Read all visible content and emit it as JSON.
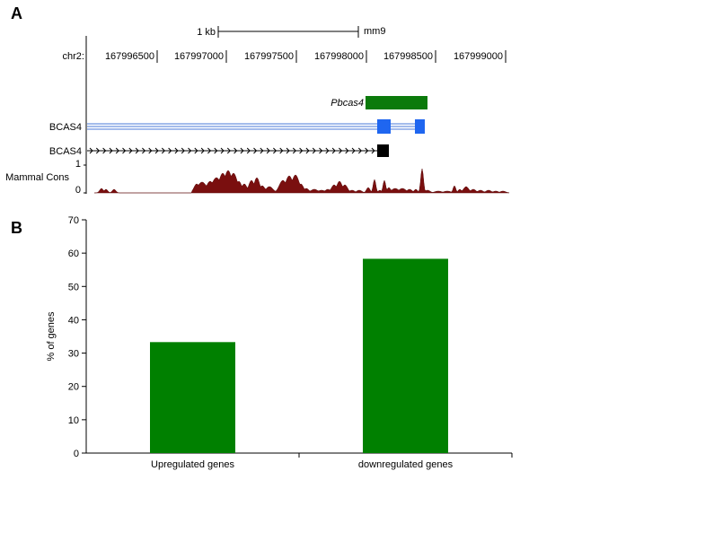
{
  "panels": {
    "a": "A",
    "b": "B"
  },
  "browser": {
    "scale_label": "1 kb",
    "assembly": "mm9",
    "chrom": "chr2:",
    "positions": [
      "167996500",
      "167997000",
      "167997500",
      "167998000",
      "167998500",
      "167999000"
    ],
    "pbcas4_label": "Pbcas4",
    "bcas4_blue_label": "BCAS4",
    "bcas4_black_label": "BCAS4",
    "cons_label": "Mammal Cons",
    "cons_max": "1",
    "cons_min": "0",
    "colors": {
      "pbcas4": "#0b7a0b",
      "bcas4_blue": "#1f66f0",
      "cons": "#7a0f0f",
      "label_green": "#1e7a1e",
      "label_blue": "#2f6fd8"
    }
  },
  "chart_data": {
    "type": "bar",
    "categories": [
      "Upregulated genes",
      "downregulated genes"
    ],
    "values": [
      33.3,
      58.3
    ],
    "ylabel": "% of genes",
    "xlabel": "",
    "ylim": [
      0,
      70
    ],
    "yticks": [
      0,
      10,
      20,
      30,
      40,
      50,
      60,
      70
    ],
    "grid": false,
    "bar_color": "#008000"
  }
}
